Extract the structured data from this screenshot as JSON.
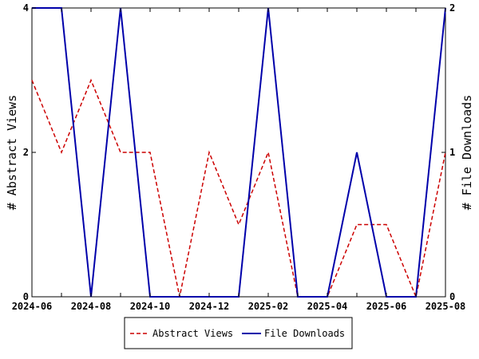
{
  "chart_data": {
    "type": "line",
    "x": [
      "2024-06",
      "2024-07",
      "2024-08",
      "2024-09",
      "2024-10",
      "2024-11",
      "2024-12",
      "2025-01",
      "2025-02",
      "2025-03",
      "2025-04",
      "2025-05",
      "2025-06",
      "2025-07",
      "2025-08"
    ],
    "x_tick_labels": [
      "2024-06",
      "2024-08",
      "2024-10",
      "2024-12",
      "2025-02",
      "2025-04",
      "2025-06",
      "2025-08"
    ],
    "series": [
      {
        "name": "Abstract Views",
        "axis": "left",
        "color": "#cc0000",
        "style": "dashed",
        "values": [
          3,
          2,
          3,
          2,
          2,
          0,
          2,
          1,
          2,
          0,
          0,
          1,
          1,
          0,
          2
        ]
      },
      {
        "name": "File Downloads",
        "axis": "right",
        "color": "#0000aa",
        "style": "solid",
        "values": [
          2,
          2,
          0,
          2,
          0,
          0,
          0,
          0,
          2,
          0,
          0,
          1,
          0,
          0,
          2
        ]
      }
    ],
    "ylabel_left": "# Abstract Views",
    "ylabel_right": "# File Downloads",
    "ylim_left": [
      0,
      4
    ],
    "ylim_right": [
      0,
      2
    ],
    "y_ticks_left": [
      "0",
      "2",
      "4"
    ],
    "y_ticks_right": [
      "0",
      "1",
      "2"
    ],
    "grid": false,
    "legend_position": "bottom-center"
  }
}
